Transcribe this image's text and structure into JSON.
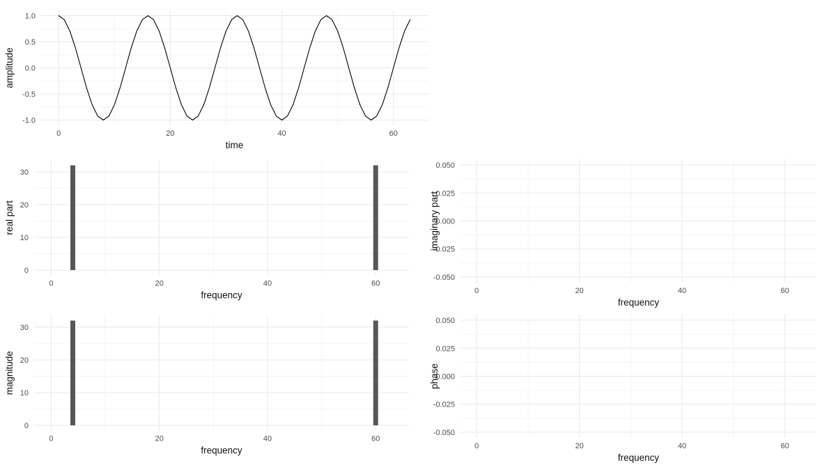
{
  "figure": {
    "background": "#ffffff",
    "grid_major_color": "#e8e8e8",
    "grid_minor_color": "#f4f4f4",
    "axis_text_color": "#4d4d4d",
    "axis_title_color": "#111111",
    "line_color": "#000000",
    "bar_color": "#575757"
  },
  "chart_data": [
    {
      "id": "signal",
      "type": "line",
      "title": "",
      "xlabel": "time",
      "ylabel": "amplitude",
      "xlim": [
        -3.15,
        66.15
      ],
      "ylim": [
        -1.1,
        1.1
      ],
      "xticks": [
        0,
        20,
        40,
        60
      ],
      "xtick_labels": [
        "0",
        "20",
        "40",
        "60"
      ],
      "xticks_minor": [
        10,
        30,
        50
      ],
      "yticks": [
        1.0,
        0.5,
        0.0,
        -0.5,
        -1.0
      ],
      "ytick_labels": [
        "1.0",
        "0.5",
        "0.0",
        "-0.5",
        "-1.0"
      ],
      "yticks_minor": [
        0.75,
        0.25,
        -0.25,
        -0.75
      ],
      "grid": true,
      "x": [
        0,
        1,
        2,
        3,
        4,
        5,
        6,
        7,
        8,
        9,
        10,
        11,
        12,
        13,
        14,
        15,
        16,
        17,
        18,
        19,
        20,
        21,
        22,
        23,
        24,
        25,
        26,
        27,
        28,
        29,
        30,
        31,
        32,
        33,
        34,
        35,
        36,
        37,
        38,
        39,
        40,
        41,
        42,
        43,
        44,
        45,
        46,
        47,
        48,
        49,
        50,
        51,
        52,
        53,
        54,
        55,
        56,
        57,
        58,
        59,
        60,
        61,
        62,
        63
      ],
      "y": [
        1,
        0.924,
        0.707,
        0.383,
        0,
        -0.383,
        -0.707,
        -0.924,
        -1,
        -0.924,
        -0.707,
        -0.383,
        0,
        0.383,
        0.707,
        0.924,
        1,
        0.924,
        0.707,
        0.383,
        0,
        -0.383,
        -0.707,
        -0.924,
        -1,
        -0.924,
        -0.707,
        -0.383,
        0,
        0.383,
        0.707,
        0.924,
        1,
        0.924,
        0.707,
        0.383,
        0,
        -0.383,
        -0.707,
        -0.924,
        -1,
        -0.924,
        -0.707,
        -0.383,
        0,
        0.383,
        0.707,
        0.924,
        1,
        0.924,
        0.707,
        0.383,
        0,
        -0.383,
        -0.707,
        -0.924,
        -1,
        -0.924,
        -0.707,
        -0.383,
        0,
        0.383,
        0.707,
        0.924
      ]
    },
    {
      "id": "real_part",
      "type": "bar",
      "title": "",
      "xlabel": "frequency",
      "ylabel": "real part",
      "xlim": [
        -3.15,
        66.15
      ],
      "ylim": [
        -1.6,
        33.6
      ],
      "xticks": [
        0,
        20,
        40,
        60
      ],
      "xtick_labels": [
        "0",
        "20",
        "40",
        "60"
      ],
      "xticks_minor": [
        10,
        30,
        50
      ],
      "yticks": [
        30,
        20,
        10,
        0
      ],
      "ytick_labels": [
        "30",
        "20",
        "10",
        "0"
      ],
      "yticks_minor": [
        25,
        15,
        5
      ],
      "grid": true,
      "bars": {
        "x": [
          4,
          60
        ],
        "height": [
          32,
          32
        ],
        "width": 0.9
      }
    },
    {
      "id": "imaginary_part",
      "type": "bar",
      "title": "",
      "xlabel": "frequency",
      "ylabel": "imaginary part",
      "xlim": [
        -3.15,
        66.15
      ],
      "ylim": [
        -0.055,
        0.055
      ],
      "xticks": [
        0,
        20,
        40,
        60
      ],
      "xtick_labels": [
        "0",
        "20",
        "40",
        "60"
      ],
      "xticks_minor": [
        10,
        30,
        50
      ],
      "yticks": [
        0.05,
        0.025,
        0.0,
        -0.025,
        -0.05
      ],
      "ytick_labels": [
        "0.050",
        "0.025",
        "0.000",
        "-0.025",
        "-0.050"
      ],
      "yticks_minor": [
        0.0375,
        0.0125,
        -0.0125,
        -0.0375
      ],
      "grid": true,
      "bars": {
        "x": [],
        "height": [],
        "width": 0.9
      }
    },
    {
      "id": "magnitude",
      "type": "bar",
      "title": "",
      "xlabel": "frequency",
      "ylabel": "magnitude",
      "xlim": [
        -3.15,
        66.15
      ],
      "ylim": [
        -1.6,
        33.6
      ],
      "xticks": [
        0,
        20,
        40,
        60
      ],
      "xtick_labels": [
        "0",
        "20",
        "40",
        "60"
      ],
      "xticks_minor": [
        10,
        30,
        50
      ],
      "yticks": [
        30,
        20,
        10,
        0
      ],
      "ytick_labels": [
        "30",
        "20",
        "10",
        "0"
      ],
      "yticks_minor": [
        25,
        15,
        5
      ],
      "grid": true,
      "bars": {
        "x": [
          4,
          60
        ],
        "height": [
          32,
          32
        ],
        "width": 0.9
      }
    },
    {
      "id": "phase",
      "type": "bar",
      "title": "",
      "xlabel": "frequency",
      "ylabel": "phase",
      "xlim": [
        -3.15,
        66.15
      ],
      "ylim": [
        -0.055,
        0.055
      ],
      "xticks": [
        0,
        20,
        40,
        60
      ],
      "xtick_labels": [
        "0",
        "20",
        "40",
        "60"
      ],
      "xticks_minor": [
        10,
        30,
        50
      ],
      "yticks": [
        0.05,
        0.025,
        0.0,
        -0.025,
        -0.05
      ],
      "ytick_labels": [
        "0.050",
        "0.025",
        "0.000",
        "-0.025",
        "-0.050"
      ],
      "yticks_minor": [
        0.0375,
        0.0125,
        -0.0125,
        -0.0375
      ],
      "grid": true,
      "bars": {
        "x": [],
        "height": [],
        "width": 0.9
      }
    }
  ]
}
